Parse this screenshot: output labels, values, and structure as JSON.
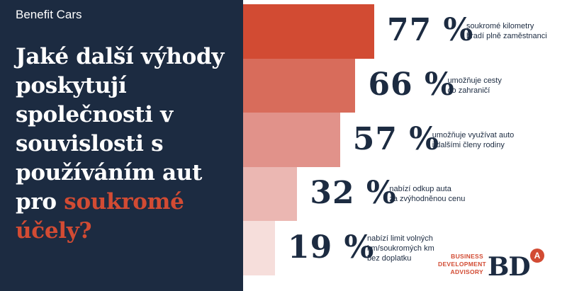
{
  "brand": "Benefit Cars",
  "headline": {
    "main": "Jaké další výhody poskytují společnosti v souvislosti s používáním aut pro",
    "accent": "soukromé účely?"
  },
  "colors": {
    "navy": "#1c2b41",
    "accent": "#d24b33"
  },
  "chart_data": {
    "type": "bar",
    "orientation": "horizontal",
    "categories": [
      "soukromé kilometry\nhradí plně zaměstnanci",
      "umožňuje cesty\ndo zahraničí",
      "umožňuje využívat auto\ni dalšími členy rodiny",
      "nabízí odkup auta\nza zvýhodněnou cenu",
      "nabízí limit volných\nkm/soukromých km\nbez doplatku"
    ],
    "values": [
      77,
      66,
      57,
      32,
      19
    ],
    "value_labels": [
      "77 %",
      "66 %",
      "57 %",
      "32 %",
      "19 %"
    ],
    "bar_colors": [
      "#d24b33",
      "#d86c5b",
      "#e1928a",
      "#ebb7b2",
      "#f6dedb"
    ]
  },
  "logo": {
    "text": "BUSINESS\nDEVELOPMENT\nADVISORY",
    "mark": "BD",
    "badge": "A"
  }
}
